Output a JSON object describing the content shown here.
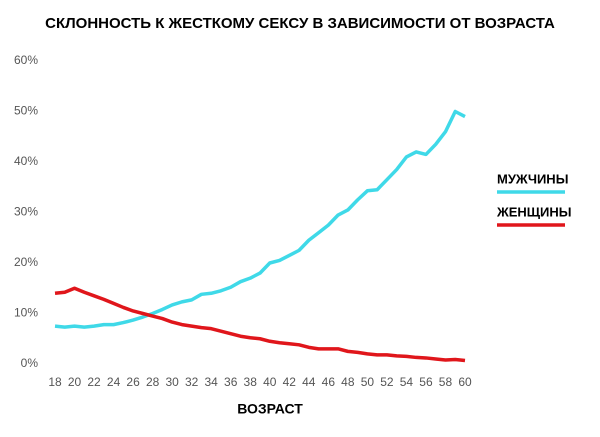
{
  "chart_data": {
    "type": "line",
    "title": "СКЛОННОСТЬ К ЖЕСТКОМУ СЕКСУ В ЗАВИСИМОСТИ ОТ ВОЗРАСТА",
    "x_label": "ВОЗРАСТ",
    "x": [
      18,
      19,
      20,
      21,
      22,
      23,
      24,
      25,
      26,
      27,
      28,
      29,
      30,
      31,
      32,
      33,
      34,
      35,
      36,
      37,
      38,
      39,
      40,
      41,
      42,
      43,
      44,
      45,
      46,
      47,
      48,
      49,
      50,
      51,
      52,
      53,
      54,
      55,
      56,
      57,
      58,
      59,
      60
    ],
    "series": [
      {
        "name": "МУЖЧИНЫ",
        "color": "#3fd9e8",
        "values": [
          7.5,
          7.3,
          7.5,
          7.3,
          7.5,
          7.8,
          7.8,
          8.2,
          8.7,
          9.3,
          10.0,
          10.8,
          11.7,
          12.3,
          12.7,
          13.8,
          14.0,
          14.5,
          15.2,
          16.3,
          17.0,
          18.0,
          20.0,
          20.5,
          21.5,
          22.5,
          24.5,
          26.0,
          27.5,
          29.5,
          30.5,
          32.5,
          34.3,
          34.5,
          36.5,
          38.5,
          41.0,
          42.0,
          41.5,
          43.5,
          46.0,
          50.0,
          49.0
        ]
      },
      {
        "name": "ЖЕНЩИНЫ",
        "color": "#e0161b",
        "values": [
          14.0,
          14.2,
          15.0,
          14.2,
          13.5,
          12.8,
          12.0,
          11.2,
          10.5,
          10.0,
          9.5,
          9.0,
          8.3,
          7.8,
          7.5,
          7.2,
          7.0,
          6.5,
          6.0,
          5.5,
          5.2,
          5.0,
          4.5,
          4.2,
          4.0,
          3.8,
          3.3,
          3.0,
          3.0,
          3.0,
          2.5,
          2.3,
          2.0,
          1.8,
          1.8,
          1.6,
          1.5,
          1.3,
          1.2,
          1.0,
          0.8,
          0.9,
          0.7
        ]
      }
    ],
    "xlim": [
      18,
      60
    ],
    "xticks": [
      18,
      20,
      22,
      24,
      26,
      28,
      30,
      32,
      34,
      36,
      38,
      40,
      42,
      44,
      46,
      48,
      50,
      52,
      54,
      56,
      58,
      60
    ],
    "ylim": [
      0,
      60
    ],
    "yticks": [
      {
        "value": 0,
        "label": "0%"
      },
      {
        "value": 10,
        "label": "10%"
      },
      {
        "value": 20,
        "label": "20%"
      },
      {
        "value": 30,
        "label": "30%"
      },
      {
        "value": 40,
        "label": "40%"
      },
      {
        "value": 50,
        "label": "50%"
      },
      {
        "value": 60,
        "label": "60%"
      }
    ],
    "grid": false
  }
}
